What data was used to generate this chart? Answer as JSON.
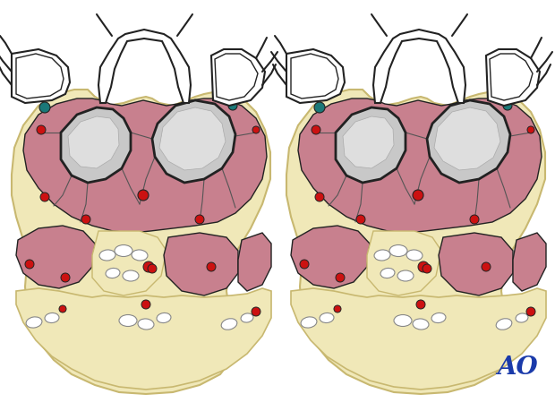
{
  "bg_color": "#ffffff",
  "muscle_color": "#c8808e",
  "bone_color": "#c8c8c8",
  "bone_outline": "#222222",
  "fascia_color": "#f0e8b8",
  "fascia_edge": "#c8b870",
  "vessel_red": "#cc1111",
  "vessel_blue": "#3355aa",
  "vessel_teal": "#1a7878",
  "wh": "#ffffff",
  "bk": "#222222",
  "ao_color": "#1a3aaa",
  "ao_text": "AO",
  "ao_fontsize": 20,
  "fig_width": 6.2,
  "fig_height": 4.59,
  "dpi": 100
}
